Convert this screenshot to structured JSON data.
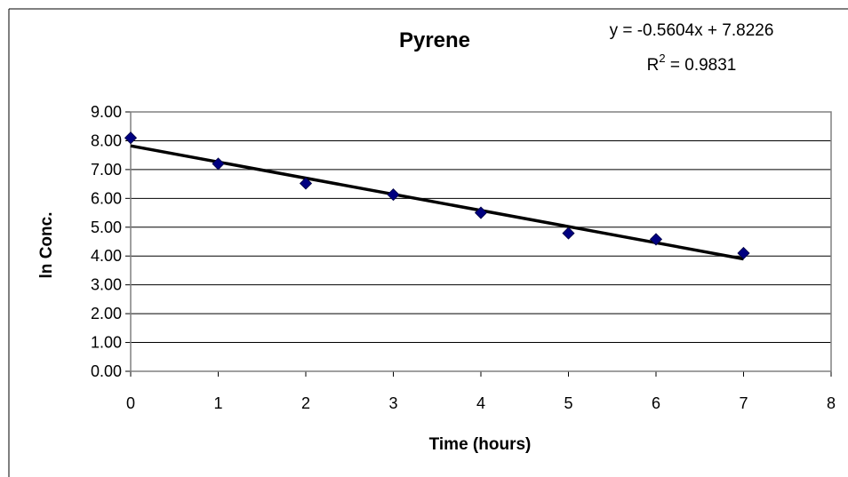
{
  "chart_data": {
    "type": "scatter",
    "title": "Pyrene",
    "xlabel": "Time (hours)",
    "ylabel": "ln Conc.",
    "xlim": [
      0,
      8
    ],
    "ylim": [
      0,
      9
    ],
    "x_ticks": [
      "0",
      "1",
      "2",
      "3",
      "4",
      "5",
      "6",
      "7",
      "8"
    ],
    "y_ticks": [
      "0.00",
      "1.00",
      "2.00",
      "3.00",
      "4.00",
      "5.00",
      "6.00",
      "7.00",
      "8.00",
      "9.00"
    ],
    "grid": "horizontal",
    "legend": "none",
    "series": [
      {
        "x": [
          0,
          1,
          2,
          3,
          4,
          5,
          6,
          7
        ],
        "y": [
          8.1,
          7.2,
          6.52,
          6.13,
          5.5,
          4.79,
          4.58,
          4.1
        ],
        "marker": "diamond",
        "color": "#000080"
      }
    ],
    "trendline": {
      "slope": -0.5604,
      "intercept": 7.8226,
      "x_range": [
        0,
        7
      ],
      "color": "#000000",
      "equation_label": "y = -0.5604x + 7.8226",
      "r2_prefix": "R",
      "r2_superscript": "2",
      "r2_value_text": " = 0.9831"
    }
  }
}
